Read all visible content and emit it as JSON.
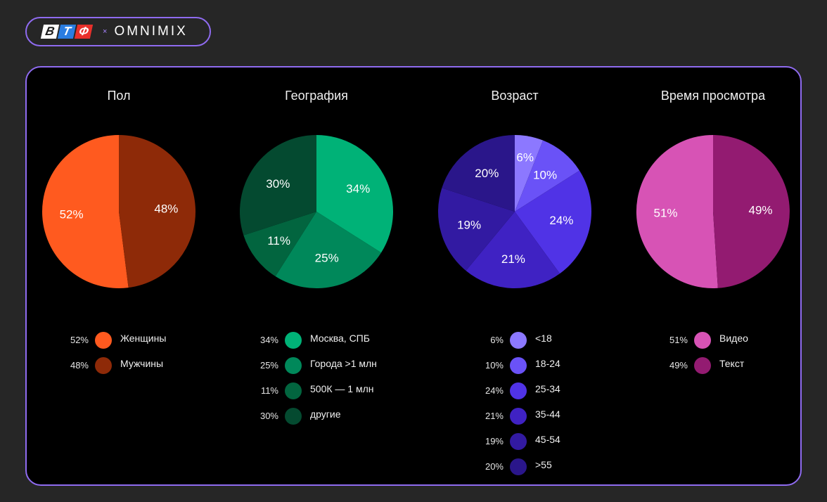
{
  "header": {
    "logo_letters": [
      "В",
      "Т",
      "Ф"
    ],
    "logo_x": "×",
    "partner": "OMNIMIX"
  },
  "chart_data": [
    {
      "type": "pie",
      "title": "Пол",
      "labels": [
        "Женщины",
        "Мужчины"
      ],
      "values": [
        52,
        48
      ],
      "colors": [
        "#ff5a1f",
        "#8e2a08"
      ],
      "start_side": "left"
    },
    {
      "type": "pie",
      "title": "География",
      "labels": [
        "Москва, СПБ",
        "Города >1 млн",
        "500К — 1 млн",
        "другие"
      ],
      "values": [
        34,
        25,
        11,
        30
      ],
      "colors": [
        "#00b277",
        "#00885a",
        "#02653f",
        "#044a30"
      ],
      "start_side": "right"
    },
    {
      "type": "pie",
      "title": "Возраст",
      "labels": [
        "<18",
        "18-24",
        "25-34",
        "35-44",
        "45-54",
        ">55"
      ],
      "values": [
        6,
        10,
        24,
        21,
        19,
        20
      ],
      "colors": [
        "#8c78ff",
        "#6a52f7",
        "#5033e6",
        "#3f22c3",
        "#321aa2",
        "#2a168a"
      ],
      "start_side": "right"
    },
    {
      "type": "pie",
      "title": "Время просмотра",
      "labels": [
        "Видео",
        "Текст"
      ],
      "values": [
        51,
        49
      ],
      "colors": [
        "#d753b5",
        "#931b71"
      ],
      "start_side": "left"
    }
  ]
}
